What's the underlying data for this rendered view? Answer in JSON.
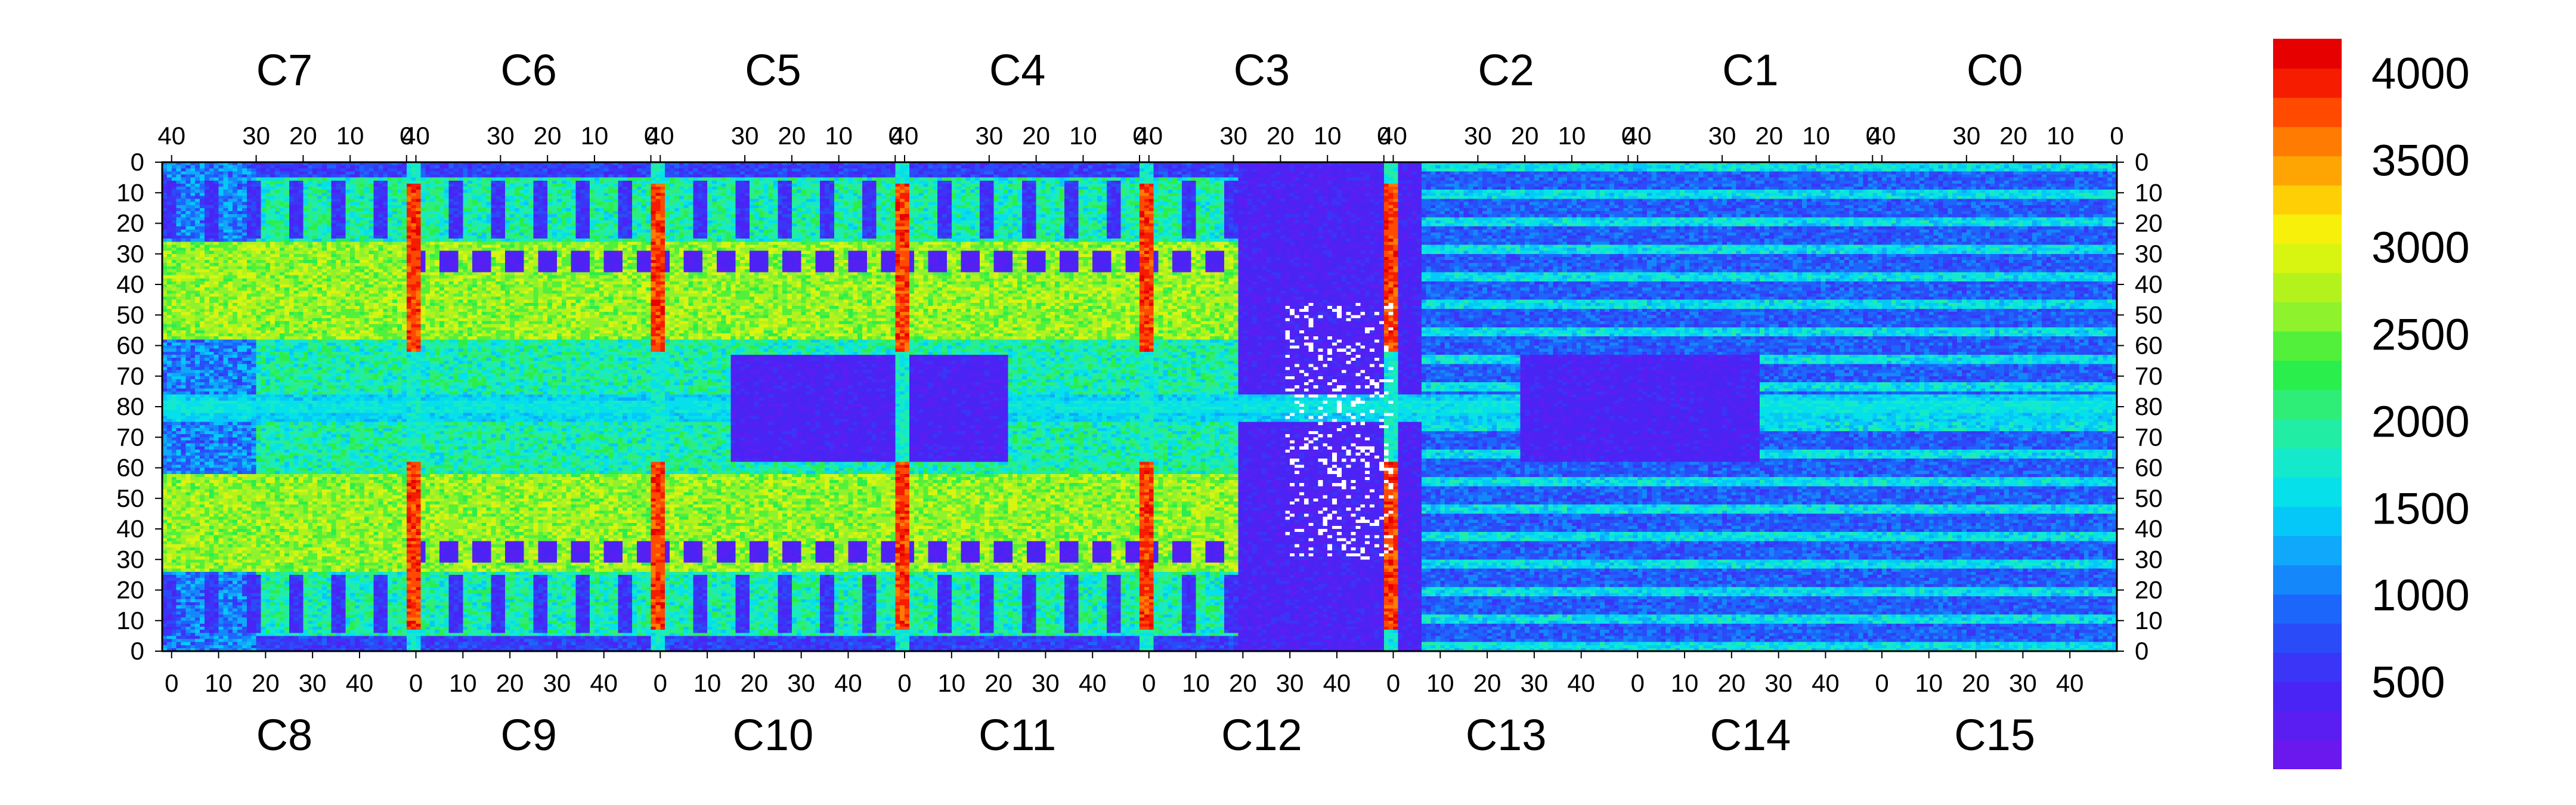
{
  "chart_data": {
    "type": "heatmap",
    "top_chip_labels": [
      "C7",
      "C6",
      "C5",
      "C4",
      "C3",
      "C2",
      "C1",
      "C0"
    ],
    "bottom_chip_labels": [
      "C8",
      "C9",
      "C10",
      "C11",
      "C12",
      "C13",
      "C14",
      "C15"
    ],
    "top_axis_ticks": [
      "40",
      "30",
      "20",
      "10",
      "0"
    ],
    "bottom_axis_ticks": [
      "0",
      "10",
      "20",
      "30",
      "40"
    ],
    "y_axis_ticks": [
      "0",
      "10",
      "20",
      "30",
      "40",
      "50",
      "60",
      "70",
      "80",
      "70",
      "60",
      "50",
      "40",
      "30",
      "20",
      "10",
      "0"
    ],
    "colorbar": {
      "min": 0,
      "max": 4200,
      "tick_labels": [
        "4000",
        "3500",
        "3000",
        "2500",
        "2000",
        "1500",
        "1000",
        "500"
      ],
      "tick_values": [
        4000,
        3500,
        3000,
        2500,
        2000,
        1500,
        1000,
        500
      ],
      "colors": [
        "#6a18ee",
        "#5b1ef2",
        "#4a24f5",
        "#3a35f7",
        "#2a4cf8",
        "#1d66fb",
        "#1488fb",
        "#0fa8fb",
        "#06c8f8",
        "#05e0ea",
        "#14eacb",
        "#22eda4",
        "#2eee78",
        "#2aee4c",
        "#52f03a",
        "#8ef22c",
        "#b4f21c",
        "#d8f411",
        "#f6f00b",
        "#ffcf06",
        "#ffa503",
        "#ff7b01",
        "#ff4a00",
        "#f51c00",
        "#e60000"
      ]
    },
    "grid_dims": {
      "columns": 416,
      "rows": 160,
      "chips_per_row": 8
    },
    "description_values": {
      "background_level": 1900,
      "hot_strip_level": 3600,
      "dead_region_level": 250,
      "central_band_level": 1300
    }
  }
}
